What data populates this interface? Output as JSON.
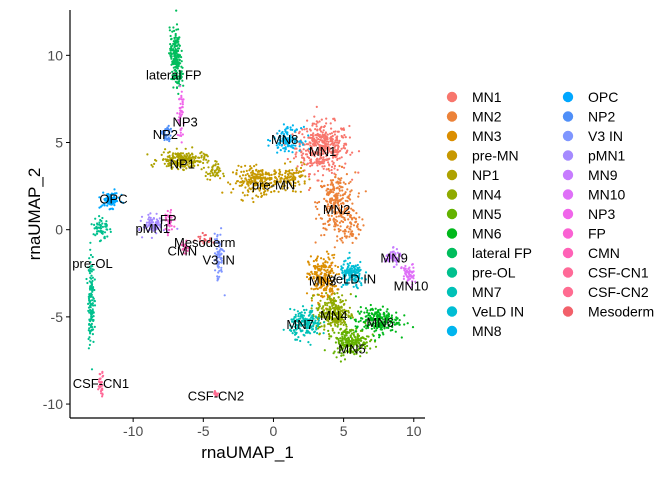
{
  "chart_data": {
    "type": "scatter",
    "title": "",
    "xlabel": "rnaUMAP_1",
    "ylabel": "rnaUMAP_2",
    "xlim": [
      -14.5,
      10.8
    ],
    "ylim": [
      -10.8,
      12.6
    ],
    "x_ticks": [
      -10,
      -5,
      0,
      5,
      10
    ],
    "x_tick_labels": [
      "-10",
      "-5",
      "0",
      "5",
      "10"
    ],
    "y_ticks": [
      -10,
      -5,
      0,
      5,
      10
    ],
    "y_tick_labels": [
      "-10",
      "-5",
      "0",
      "5",
      "10"
    ],
    "grid": false,
    "legend_position": "right",
    "legend_columns": 2,
    "series": [
      {
        "name": "MN1",
        "color": "#F8766D",
        "label": "MN1",
        "label_pos": [
          3.5,
          4.5
        ],
        "regions": [
          [
            3.5,
            4.7,
            1.7,
            1.3,
            420
          ]
        ]
      },
      {
        "name": "MN2",
        "color": "#EC8239",
        "label": "MN2",
        "label_pos": [
          4.5,
          1.2
        ],
        "regions": [
          [
            4.5,
            1.5,
            1.2,
            1.6,
            260
          ],
          [
            5.5,
            0.2,
            0.7,
            0.9,
            60
          ]
        ]
      },
      {
        "name": "MN3",
        "color": "#DB8E00",
        "label": "MN3",
        "label_pos": [
          3.5,
          -2.9
        ],
        "regions": [
          [
            3.5,
            -2.8,
            0.9,
            1.2,
            220
          ]
        ]
      },
      {
        "name": "pre-MN",
        "color": "#C79800",
        "label": "pre-MN",
        "label_pos": [
          0,
          2.6
        ],
        "regions": [
          [
            -1.0,
            2.8,
            1.7,
            0.7,
            250
          ],
          [
            1.4,
            3.0,
            0.9,
            0.6,
            80
          ]
        ]
      },
      {
        "name": "NP1",
        "color": "#AEA200",
        "label": "NP1",
        "label_pos": [
          -6.5,
          3.8
        ],
        "regions": [
          [
            -6.5,
            4.0,
            1.5,
            0.45,
            220
          ],
          [
            -4.3,
            3.3,
            0.5,
            0.4,
            40
          ]
        ]
      },
      {
        "name": "MN4",
        "color": "#8FAA00",
        "label": "MN4",
        "label_pos": [
          4.3,
          -4.9
        ],
        "regions": [
          [
            4.3,
            -4.8,
            1.1,
            1.0,
            250
          ]
        ]
      },
      {
        "name": "MN5",
        "color": "#64B200",
        "label": "MN5",
        "label_pos": [
          5.6,
          -6.8
        ],
        "regions": [
          [
            5.5,
            -6.4,
            1.2,
            0.7,
            220
          ]
        ]
      },
      {
        "name": "MN6",
        "color": "#00B81B",
        "label": "MN6",
        "label_pos": [
          7.6,
          -5.3
        ],
        "regions": [
          [
            7.4,
            -5.2,
            1.4,
            0.7,
            220
          ]
        ]
      },
      {
        "name": "lateral FP",
        "color": "#00BD5C",
        "label": "lateral FP",
        "label_pos": [
          -7.1,
          8.9
        ],
        "regions": [
          [
            -7.0,
            10.2,
            0.35,
            1.2,
            150
          ],
          [
            -6.8,
            8.8,
            0.4,
            0.6,
            60
          ]
        ]
      },
      {
        "name": "pre-OL",
        "color": "#00C08E",
        "label": "pre-OL",
        "label_pos": [
          -12.9,
          -1.9
        ],
        "regions": [
          [
            -13.0,
            -4.0,
            0.2,
            2.4,
            140
          ],
          [
            -12.3,
            0.1,
            0.5,
            0.7,
            60
          ]
        ]
      },
      {
        "name": "MN7",
        "color": "#00C1B7",
        "label": "MN7",
        "label_pos": [
          1.9,
          -5.4
        ],
        "regions": [
          [
            2.3,
            -5.4,
            1.0,
            0.7,
            180
          ]
        ]
      },
      {
        "name": "VeLD IN",
        "color": "#00BDD4",
        "label": "VeLD IN",
        "label_pos": [
          5.6,
          -2.8
        ],
        "regions": [
          [
            5.6,
            -2.6,
            0.8,
            0.7,
            140
          ]
        ]
      },
      {
        "name": "MN8",
        "color": "#00B5EE",
        "label": "MN8",
        "label_pos": [
          0.8,
          5.2
        ],
        "regions": [
          [
            1.0,
            5.2,
            0.9,
            0.6,
            120
          ]
        ]
      },
      {
        "name": "OPC",
        "color": "#00A7FF",
        "label": "OPC",
        "label_pos": [
          -11.4,
          1.8
        ],
        "regions": [
          [
            -11.6,
            1.7,
            0.6,
            0.4,
            90
          ]
        ]
      },
      {
        "name": "NP2",
        "color": "#4F8FF8",
        "label": "NP2",
        "label_pos": [
          -7.7,
          5.5
        ],
        "regions": [
          [
            -7.6,
            5.4,
            0.3,
            0.5,
            40
          ]
        ]
      },
      {
        "name": "V3 IN",
        "color": "#7F96FF",
        "label": "V3 IN",
        "label_pos": [
          -3.9,
          -1.7
        ],
        "regions": [
          [
            -3.9,
            -1.6,
            0.3,
            1.3,
            70
          ]
        ]
      },
      {
        "name": "pMN1",
        "color": "#A58AFF",
        "label": "pMN1",
        "label_pos": [
          -8.6,
          0.1
        ],
        "regions": [
          [
            -8.5,
            0.3,
            0.7,
            0.5,
            90
          ]
        ]
      },
      {
        "name": "MN9",
        "color": "#C77CFF",
        "label": "MN9",
        "label_pos": [
          8.6,
          -1.6
        ],
        "regions": [
          [
            8.5,
            -1.6,
            0.5,
            0.4,
            60
          ]
        ]
      },
      {
        "name": "MN10",
        "color": "#DF70F8",
        "label": "MN10",
        "label_pos": [
          9.8,
          -3.2
        ],
        "regions": [
          [
            9.6,
            -2.6,
            0.4,
            0.6,
            60
          ]
        ]
      },
      {
        "name": "NP3",
        "color": "#F066EA",
        "label": "NP3",
        "label_pos": [
          -6.3,
          6.2
        ],
        "regions": [
          [
            -6.6,
            6.6,
            0.2,
            1.2,
            50
          ]
        ]
      },
      {
        "name": "FP",
        "color": "#FA62D3",
        "label": "FP",
        "label_pos": [
          -7.5,
          0.6
        ],
        "regions": [
          [
            -7.4,
            0.4,
            0.25,
            0.6,
            40
          ]
        ]
      },
      {
        "name": "CMN",
        "color": "#FF62B7",
        "label": "CMN",
        "label_pos": [
          -6.5,
          -1.2
        ],
        "regions": [
          [
            -6.3,
            -1.0,
            0.25,
            0.3,
            25
          ]
        ]
      },
      {
        "name": "CSF-CN1",
        "color": "#FF6A98",
        "label": "CSF-CN1",
        "label_pos": [
          -12.3,
          -8.8
        ],
        "regions": [
          [
            -12.3,
            -8.8,
            0.2,
            0.6,
            35
          ]
        ]
      },
      {
        "name": "CSF-CN2",
        "color": "#FF6C91",
        "label": "CSF-CN2",
        "label_pos": [
          -4.1,
          -9.5
        ],
        "regions": [
          [
            -4.1,
            -9.4,
            0.15,
            0.15,
            15
          ]
        ]
      },
      {
        "name": "Mesoderm",
        "color": "#F2606A",
        "label": "Mesoderm",
        "label_pos": [
          -4.9,
          -0.7
        ],
        "regions": [
          [
            -4.9,
            -0.5,
            0.5,
            0.3,
            20
          ]
        ]
      }
    ]
  }
}
